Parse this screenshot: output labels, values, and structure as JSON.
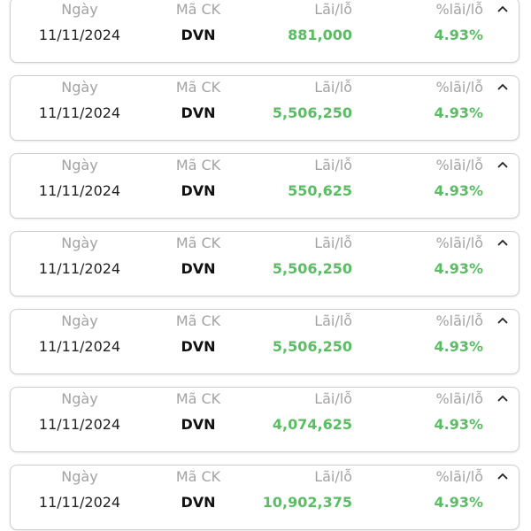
{
  "colors": {
    "label": "#a3a3a3",
    "positive": "#5bbd63",
    "text": "#222222",
    "border": "#cfcfcf"
  },
  "headers": {
    "date": "Ngày",
    "code": "Mã CK",
    "pl": "Lãi/lỗ",
    "pct": "%lãi/lỗ"
  },
  "rows": [
    {
      "date": "11/11/2024",
      "code": "DVN",
      "pl": "881,000",
      "pct": "4.93%"
    },
    {
      "date": "11/11/2024",
      "code": "DVN",
      "pl": "5,506,250",
      "pct": "4.93%"
    },
    {
      "date": "11/11/2024",
      "code": "DVN",
      "pl": "550,625",
      "pct": "4.93%"
    },
    {
      "date": "11/11/2024",
      "code": "DVN",
      "pl": "5,506,250",
      "pct": "4.93%"
    },
    {
      "date": "11/11/2024",
      "code": "DVN",
      "pl": "5,506,250",
      "pct": "4.93%"
    },
    {
      "date": "11/11/2024",
      "code": "DVN",
      "pl": "4,074,625",
      "pct": "4.93%"
    },
    {
      "date": "11/11/2024",
      "code": "DVN",
      "pl": "10,902,375",
      "pct": "4.93%"
    }
  ],
  "expand_icon": "chevron-up-icon"
}
